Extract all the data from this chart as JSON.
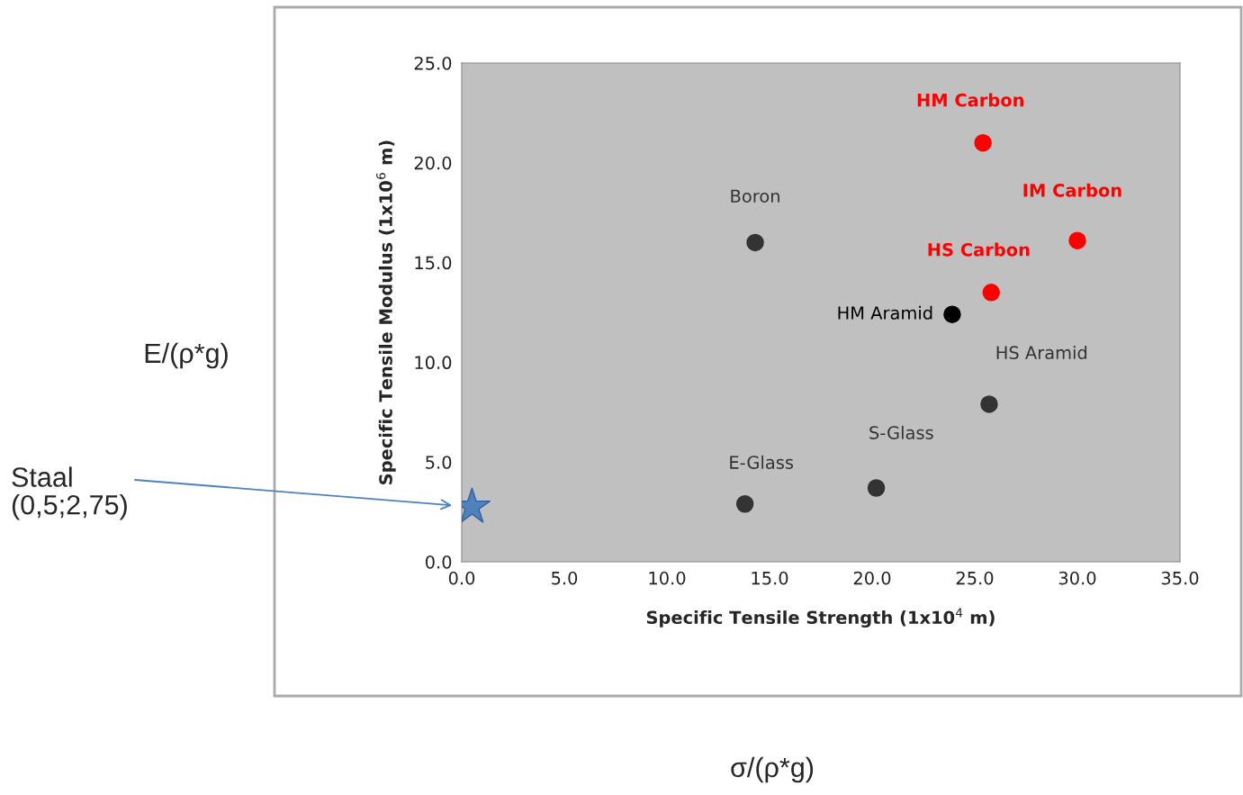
{
  "chart_data": {
    "type": "scatter",
    "xlabel": "Specific Tensile Strength (1x10$^{4}$ m)",
    "ylabel": "Specific Tensile Modulus (1x10$^{6}$ m)",
    "xlim": [
      0,
      35
    ],
    "ylim": [
      0,
      25
    ],
    "xticks": [
      {
        "value": 0,
        "label": "0.0"
      },
      {
        "value": 5,
        "label": "5.0"
      },
      {
        "value": 10,
        "label": "10.0"
      },
      {
        "value": 15,
        "label": "15.0"
      },
      {
        "value": 20,
        "label": "20.0"
      },
      {
        "value": 25,
        "label": "25.0"
      },
      {
        "value": 30,
        "label": "30.0"
      },
      {
        "value": 35,
        "label": "35.0"
      }
    ],
    "yticks": [
      {
        "value": 0,
        "label": "0.0"
      },
      {
        "value": 5,
        "label": "5.0"
      },
      {
        "value": 10,
        "label": "10.0"
      },
      {
        "value": 15,
        "label": "15.0"
      },
      {
        "value": 20,
        "label": "20.0"
      },
      {
        "value": 25,
        "label": "25.0"
      }
    ],
    "grid": false,
    "legend": false,
    "marker": "circle",
    "series": [
      {
        "name": "HM Carbon",
        "color": "#ff0000",
        "x": [
          25.4
        ],
        "values": [
          21.0
        ]
      },
      {
        "name": "IM Carbon",
        "color": "#ff0000",
        "x": [
          30.0
        ],
        "values": [
          16.1
        ]
      },
      {
        "name": "HS Carbon",
        "color": "#ff0000",
        "x": [
          25.8
        ],
        "values": [
          13.5
        ]
      },
      {
        "name": "HM Aramid",
        "color": "#000000",
        "x": [
          23.9
        ],
        "values": [
          12.4
        ]
      },
      {
        "name": "HS Aramid",
        "color": "#333333",
        "x": [
          25.7
        ],
        "values": [
          7.9
        ]
      },
      {
        "name": "Boron",
        "color": "#333333",
        "x": [
          14.3
        ],
        "values": [
          16.0
        ]
      },
      {
        "name": "S-Glass",
        "color": "#333333",
        "x": [
          20.2
        ],
        "values": [
          3.7
        ]
      },
      {
        "name": "E-Glass",
        "color": "#333333",
        "x": [
          13.8
        ],
        "values": [
          2.9
        ]
      },
      {
        "color": "#4f81bd",
        "marker": "star",
        "x": [
          0.5
        ],
        "values": [
          2.75
        ]
      }
    ],
    "annotations": [
      "E/(ρ*g)",
      "σ/(ρ*g)",
      "Staal\n(0,5;2,75)"
    ]
  }
}
